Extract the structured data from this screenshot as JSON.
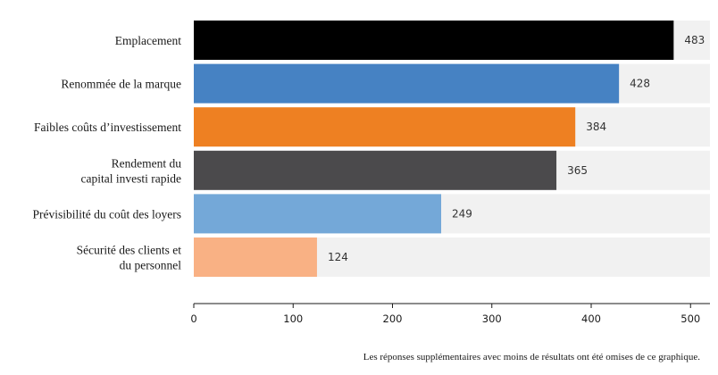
{
  "chart_data": {
    "type": "bar",
    "orientation": "horizontal",
    "categories": [
      [
        "Emplacement"
      ],
      [
        "Renommée de la marque"
      ],
      [
        "Faibles coûts d’investissement"
      ],
      [
        "Rendement du",
        "capital investi rapide"
      ],
      [
        "Prévisibilité du coût des loyers"
      ],
      [
        "Sécurité des clients et",
        "du personnel"
      ]
    ],
    "values": [
      483,
      428,
      384,
      365,
      249,
      124
    ],
    "colors": [
      "#000000",
      "#4682c3",
      "#ee8022",
      "#4b4a4c",
      "#74a8d8",
      "#f9b184"
    ],
    "track_color": "#f1f1f1",
    "xlim": [
      0,
      520
    ],
    "xticks": [
      0,
      100,
      200,
      300,
      400,
      500
    ],
    "title": "",
    "xlabel": "",
    "ylabel": "",
    "grid": false,
    "legend": "none",
    "footnote": "Les réponses supplémentaires avec moins de résultats ont été omises de ce graphique."
  }
}
